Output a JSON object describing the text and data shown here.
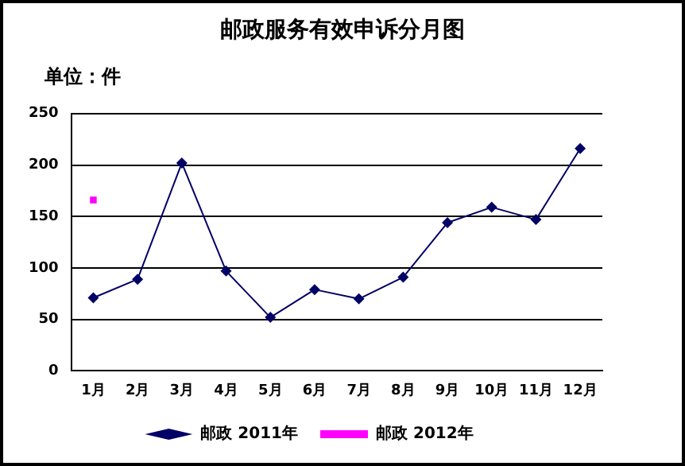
{
  "chart_data": {
    "type": "line",
    "title": "邮政服务有效申诉分月图",
    "ylabel": "单位：件",
    "categories": [
      "1月",
      "2月",
      "3月",
      "4月",
      "5月",
      "6月",
      "7月",
      "8月",
      "9月",
      "10月",
      "11月",
      "12月"
    ],
    "series": [
      {
        "name": "邮政 2011年",
        "color": "#000066",
        "marker": "diamond",
        "values": [
          71,
          89,
          202,
          97,
          52,
          79,
          70,
          91,
          144,
          159,
          147,
          216
        ]
      },
      {
        "name": "邮政 2012年",
        "color": "#ff00ff",
        "marker": "square",
        "values": [
          166,
          null,
          null,
          null,
          null,
          null,
          null,
          null,
          null,
          null,
          null,
          null
        ]
      }
    ],
    "ylim": [
      0,
      250
    ],
    "yticks": [
      0,
      50,
      100,
      150,
      200,
      250
    ],
    "grid": "y",
    "legend": "bottom",
    "line_style": "solid"
  }
}
